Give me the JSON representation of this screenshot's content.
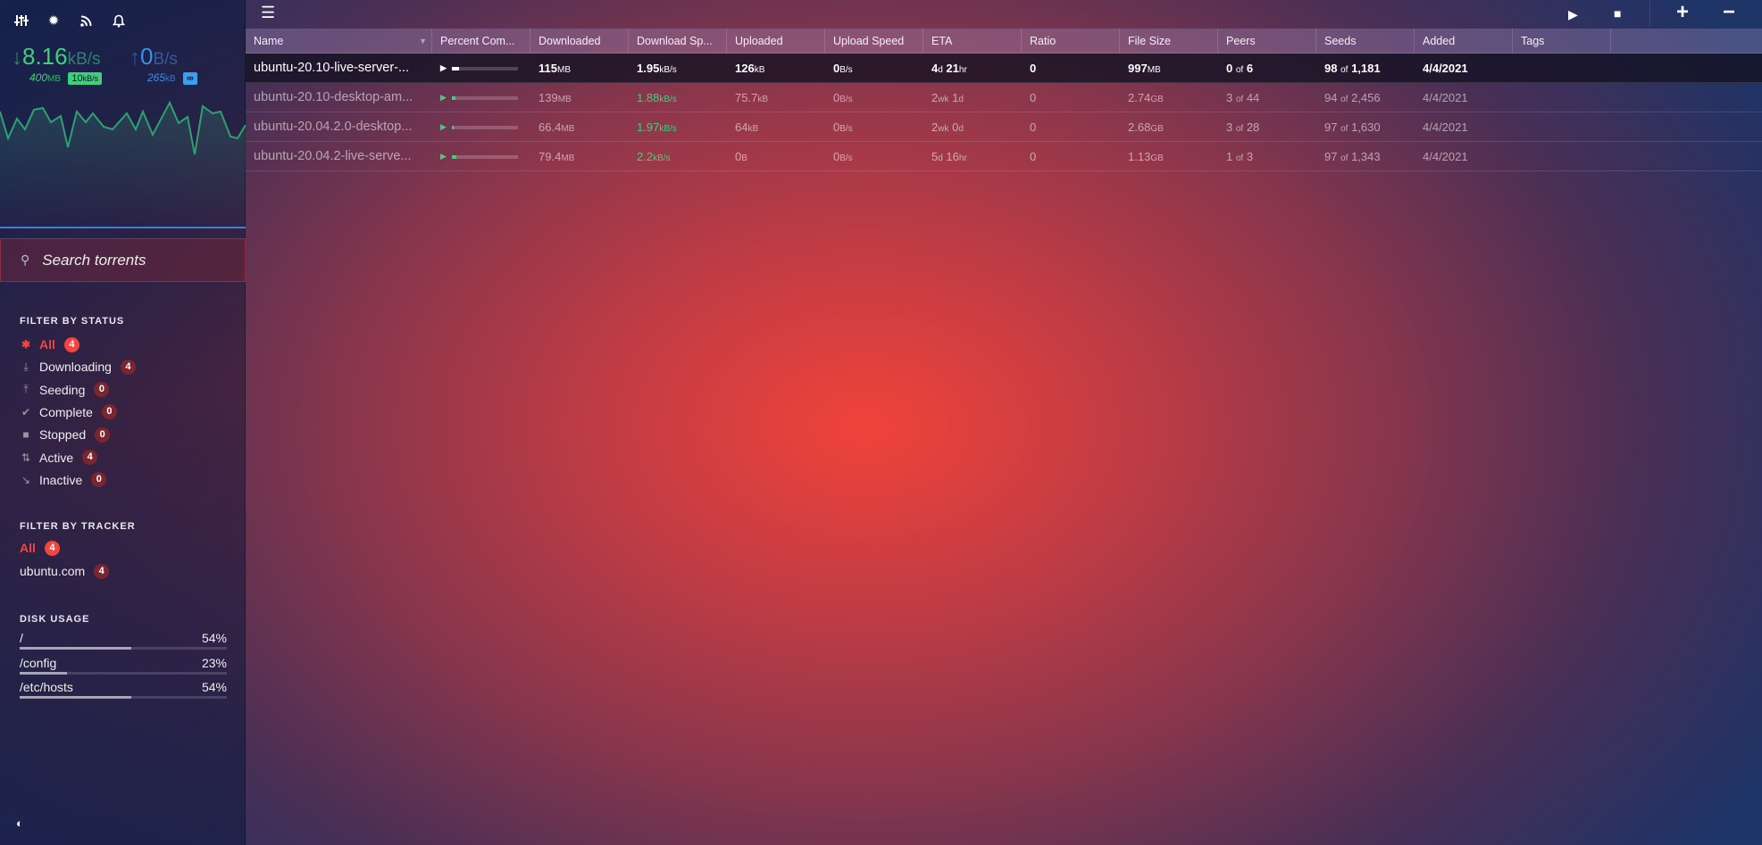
{
  "sidebar": {
    "icons": [
      "sliders-icon",
      "gear-icon",
      "rss-icon",
      "bell-icon"
    ],
    "download": {
      "speed": "8.16",
      "unit": "kB/s",
      "total": "400",
      "total_unit": "MB",
      "limit": "10",
      "limit_unit": "kB/s",
      "color": "#3fd07a"
    },
    "upload": {
      "speed": "0",
      "unit": "B/s",
      "total": "265",
      "total_unit": "kB",
      "limit": "∞",
      "color": "#3b8fe8"
    },
    "search": {
      "placeholder": "Search torrents"
    },
    "status_header": "FILTER BY STATUS",
    "status": [
      {
        "label": "All",
        "count": "4",
        "icon": "asterisk-icon",
        "active": true
      },
      {
        "label": "Downloading",
        "count": "4",
        "icon": "download-icon"
      },
      {
        "label": "Seeding",
        "count": "0",
        "icon": "upload-icon"
      },
      {
        "label": "Complete",
        "count": "0",
        "icon": "check-icon"
      },
      {
        "label": "Stopped",
        "count": "0",
        "icon": "stop-icon"
      },
      {
        "label": "Active",
        "count": "4",
        "icon": "arrows-icon"
      },
      {
        "label": "Inactive",
        "count": "0",
        "icon": "inactive-icon"
      }
    ],
    "tracker_header": "FILTER BY TRACKER",
    "trackers": [
      {
        "label": "All",
        "count": "4",
        "active": true
      },
      {
        "label": "ubuntu.com",
        "count": "4"
      }
    ],
    "disk_header": "DISK USAGE",
    "disks": [
      {
        "path": "/",
        "percent": "54%",
        "value": 54
      },
      {
        "path": "/config",
        "percent": "23%",
        "value": 23
      },
      {
        "path": "/etc/hosts",
        "percent": "54%",
        "value": 54
      }
    ]
  },
  "toolbar": {
    "icons": [
      "menu-icon",
      "start-icon",
      "stop-icon",
      "add-icon",
      "remove-icon"
    ]
  },
  "table": {
    "columns": [
      "Name",
      "Percent Com...",
      "Downloaded",
      "Download Sp...",
      "Uploaded",
      "Upload Speed",
      "ETA",
      "Ratio",
      "File Size",
      "Peers",
      "Seeds",
      "Added",
      "Tags",
      ""
    ],
    "rows": [
      {
        "name": "ubuntu-20.10-live-server-...",
        "progress": 11.5,
        "downloaded": "115",
        "downloaded_unit": "MB",
        "dl_speed": "1.95",
        "dl_speed_unit": "kB/s",
        "uploaded": "126",
        "uploaded_unit": "kB",
        "ul_speed": "0",
        "ul_speed_unit": "B/s",
        "eta_a": "4",
        "eta_au": "d",
        "eta_b": "21",
        "eta_bu": "hr",
        "ratio": "0",
        "size": "997",
        "size_unit": "MB",
        "peers": "0",
        "peers_total": "6",
        "seeds": "98",
        "seeds_total": "1,181",
        "added": "4/4/2021",
        "tags": "",
        "selected": true
      },
      {
        "name": "ubuntu-20.10-desktop-am...",
        "progress": 5,
        "downloaded": "139",
        "downloaded_unit": "MB",
        "dl_speed": "1.88",
        "dl_speed_unit": "kB/s",
        "uploaded": "75.7",
        "uploaded_unit": "kB",
        "ul_speed": "0",
        "ul_speed_unit": "B/s",
        "eta_a": "2",
        "eta_au": "wk",
        "eta_b": "1",
        "eta_bu": "d",
        "ratio": "0",
        "size": "2.74",
        "size_unit": "GB",
        "peers": "3",
        "peers_total": "44",
        "seeds": "94",
        "seeds_total": "2,456",
        "added": "4/4/2021",
        "tags": ""
      },
      {
        "name": "ubuntu-20.04.2.0-desktop...",
        "progress": 2.5,
        "downloaded": "66.4",
        "downloaded_unit": "MB",
        "dl_speed": "1.97",
        "dl_speed_unit": "kB/s",
        "uploaded": "64",
        "uploaded_unit": "kB",
        "ul_speed": "0",
        "ul_speed_unit": "B/s",
        "eta_a": "2",
        "eta_au": "wk",
        "eta_b": "0",
        "eta_bu": "d",
        "ratio": "0",
        "size": "2.68",
        "size_unit": "GB",
        "peers": "3",
        "peers_total": "28",
        "seeds": "97",
        "seeds_total": "1,630",
        "added": "4/4/2021",
        "tags": ""
      },
      {
        "name": "ubuntu-20.04.2-live-serve...",
        "progress": 7,
        "downloaded": "79.4",
        "downloaded_unit": "MB",
        "dl_speed": "2.2",
        "dl_speed_unit": "kB/s",
        "uploaded": "0",
        "uploaded_unit": "B",
        "ul_speed": "0",
        "ul_speed_unit": "B/s",
        "eta_a": "5",
        "eta_au": "d",
        "eta_b": "16",
        "eta_bu": "hr",
        "ratio": "0",
        "size": "1.13",
        "size_unit": "GB",
        "peers": "1",
        "peers_total": "3",
        "seeds": "97",
        "seeds_total": "1,343",
        "added": "4/4/2021",
        "tags": ""
      }
    ],
    "of_label": "of"
  }
}
